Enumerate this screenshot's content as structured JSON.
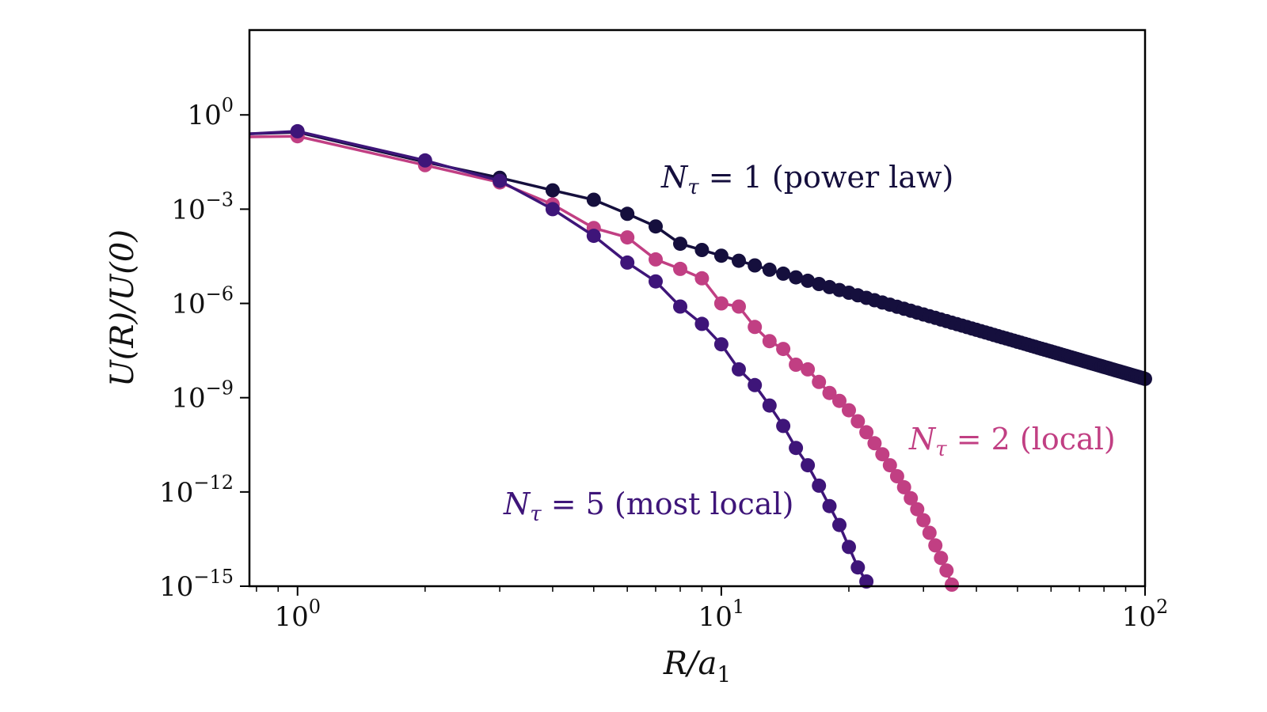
{
  "chart_data": {
    "type": "line",
    "xlabel": "R/a1",
    "ylabel": "U(R)/U(0)",
    "xscale": "log",
    "yscale": "log",
    "xlim": [
      0.77,
      100
    ],
    "ylim_exp": [
      -15,
      2.7
    ],
    "x_ticks": [
      {
        "base": "10",
        "exp": "0",
        "value": 1
      },
      {
        "base": "10",
        "exp": "1",
        "value": 10
      },
      {
        "base": "10",
        "exp": "2",
        "value": 100
      }
    ],
    "y_ticks": [
      {
        "base": "10",
        "exp": "0",
        "value": 0
      },
      {
        "base": "10",
        "exp": "−3",
        "value": -3
      },
      {
        "base": "10",
        "exp": "−6",
        "value": -6
      },
      {
        "base": "10",
        "exp": "−9",
        "value": -9
      },
      {
        "base": "10",
        "exp": "−12",
        "value": -12
      },
      {
        "base": "10",
        "exp": "−15",
        "value": -15
      }
    ],
    "series": [
      {
        "name": "Nτ = 1 (power law)",
        "label_prefix": "N",
        "label_sub": "τ",
        "label_rest": " = 1 (power law)",
        "color": "#150f3d",
        "power_law": {
          "x_start": 8,
          "x_end": 100,
          "log10_y_start": -4.1,
          "log10_y_end": -8.4
        },
        "x": [
          0.77,
          1,
          2,
          3,
          4,
          5,
          6,
          7
        ],
        "log10_y": [
          -0.6,
          -0.55,
          -1.5,
          -2.0,
          -2.4,
          -2.7,
          -3.15,
          -3.55
        ]
      },
      {
        "name": "Nτ = 2 (local)",
        "label_prefix": "N",
        "label_sub": "τ",
        "label_rest": " = 2 (local)",
        "color": "#c13f83",
        "x": [
          0.77,
          1,
          2,
          3,
          4,
          5,
          6,
          7,
          8,
          9,
          10,
          11,
          12,
          13,
          14,
          15,
          16,
          17,
          18,
          19,
          20,
          21,
          22,
          23,
          24,
          25,
          26,
          27,
          28,
          29,
          30,
          31,
          32,
          33,
          34,
          35
        ],
        "log10_y": [
          -0.7,
          -0.68,
          -1.6,
          -2.15,
          -2.85,
          -3.6,
          -3.9,
          -4.6,
          -4.9,
          -5.2,
          -6.0,
          -6.1,
          -6.75,
          -7.2,
          -7.45,
          -7.95,
          -8.1,
          -8.5,
          -8.85,
          -9.1,
          -9.4,
          -9.75,
          -10.1,
          -10.45,
          -10.8,
          -11.15,
          -11.5,
          -11.85,
          -12.2,
          -12.55,
          -12.9,
          -13.3,
          -13.7,
          -14.1,
          -14.5,
          -14.95
        ]
      },
      {
        "name": "Nτ = 5 (most local)",
        "label_prefix": "N",
        "label_sub": "τ",
        "label_rest": " = 5 (most local)",
        "color": "#3e1579",
        "x": [
          0.77,
          1,
          2,
          3,
          4,
          5,
          6,
          7,
          8,
          9,
          10,
          11,
          12,
          13,
          14,
          15,
          16,
          17,
          18,
          19,
          20,
          21,
          22
        ],
        "log10_y": [
          -0.6,
          -0.52,
          -1.45,
          -2.1,
          -3.0,
          -3.85,
          -4.7,
          -5.3,
          -6.1,
          -6.65,
          -7.3,
          -8.1,
          -8.6,
          -9.25,
          -9.9,
          -10.6,
          -11.15,
          -11.8,
          -12.45,
          -13.05,
          -13.75,
          -14.4,
          -14.85
        ]
      }
    ]
  }
}
